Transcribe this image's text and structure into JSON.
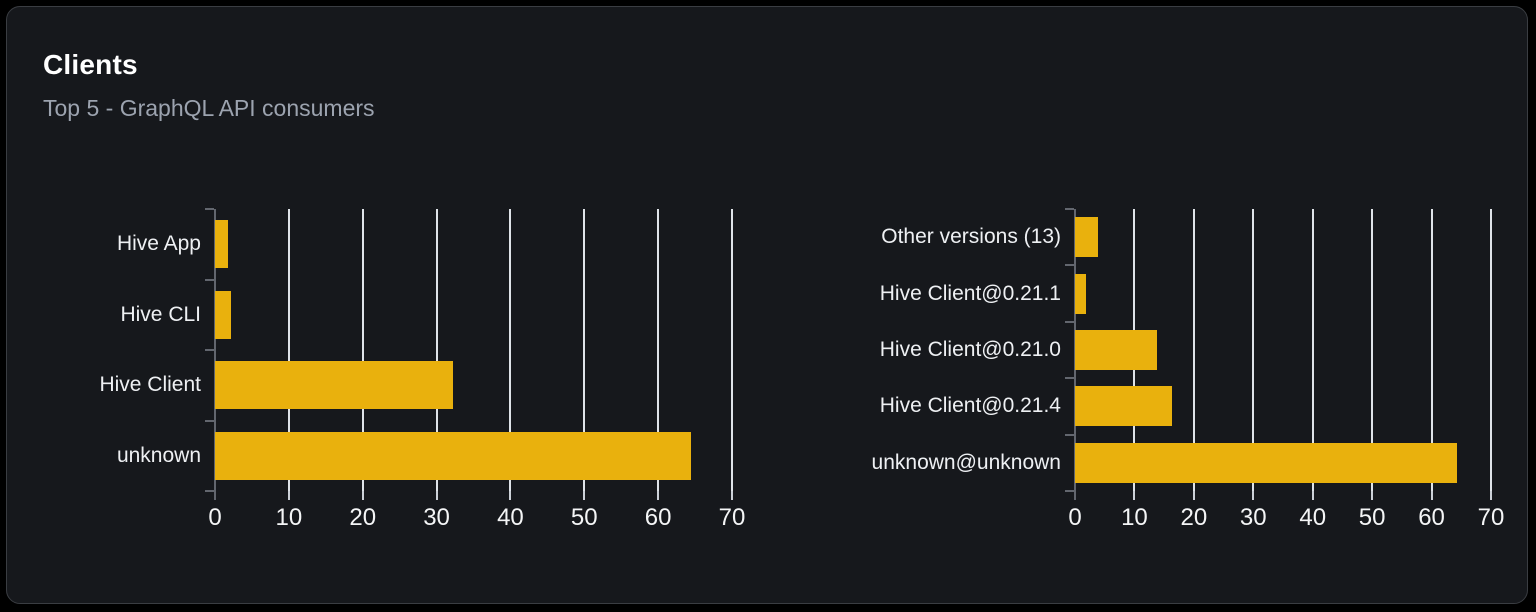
{
  "card": {
    "title": "Clients",
    "subtitle": "Top 5 - GraphQL API consumers"
  },
  "colors": {
    "page_bg": "#000000",
    "card_bg": "#16181c",
    "card_border": "#3a3d42",
    "bar": "#e9b10d",
    "gridline": "#dfe3e8",
    "axis": "#62666e",
    "title": "#ffffff",
    "subtitle": "#9ca3af",
    "label": "#eef0f3"
  },
  "chart_data": [
    {
      "type": "bar",
      "orientation": "horizontal",
      "name": "top-clients",
      "categories_top_to_bottom": [
        "Hive App",
        "Hive CLI",
        "Hive Client",
        "unknown"
      ],
      "values": [
        1.7,
        2.2,
        32.2,
        64.4
      ],
      "xlim": [
        0,
        70
      ],
      "x_ticks": [
        0,
        10,
        20,
        30,
        40,
        50,
        60,
        70
      ],
      "grid": true,
      "legend": false,
      "xlabel": "",
      "ylabel": ""
    },
    {
      "type": "bar",
      "orientation": "horizontal",
      "name": "top-client-versions",
      "categories_top_to_bottom": [
        "Other versions (13)",
        "Hive Client@0.21.1",
        "Hive Client@0.21.0",
        "Hive Client@0.21.4",
        "unknown@unknown"
      ],
      "values": [
        3.8,
        1.8,
        13.8,
        16.4,
        64.3
      ],
      "xlim": [
        0,
        70
      ],
      "x_ticks": [
        0,
        10,
        20,
        30,
        40,
        50,
        60,
        70
      ],
      "grid": true,
      "legend": false,
      "xlabel": "",
      "ylabel": ""
    }
  ]
}
